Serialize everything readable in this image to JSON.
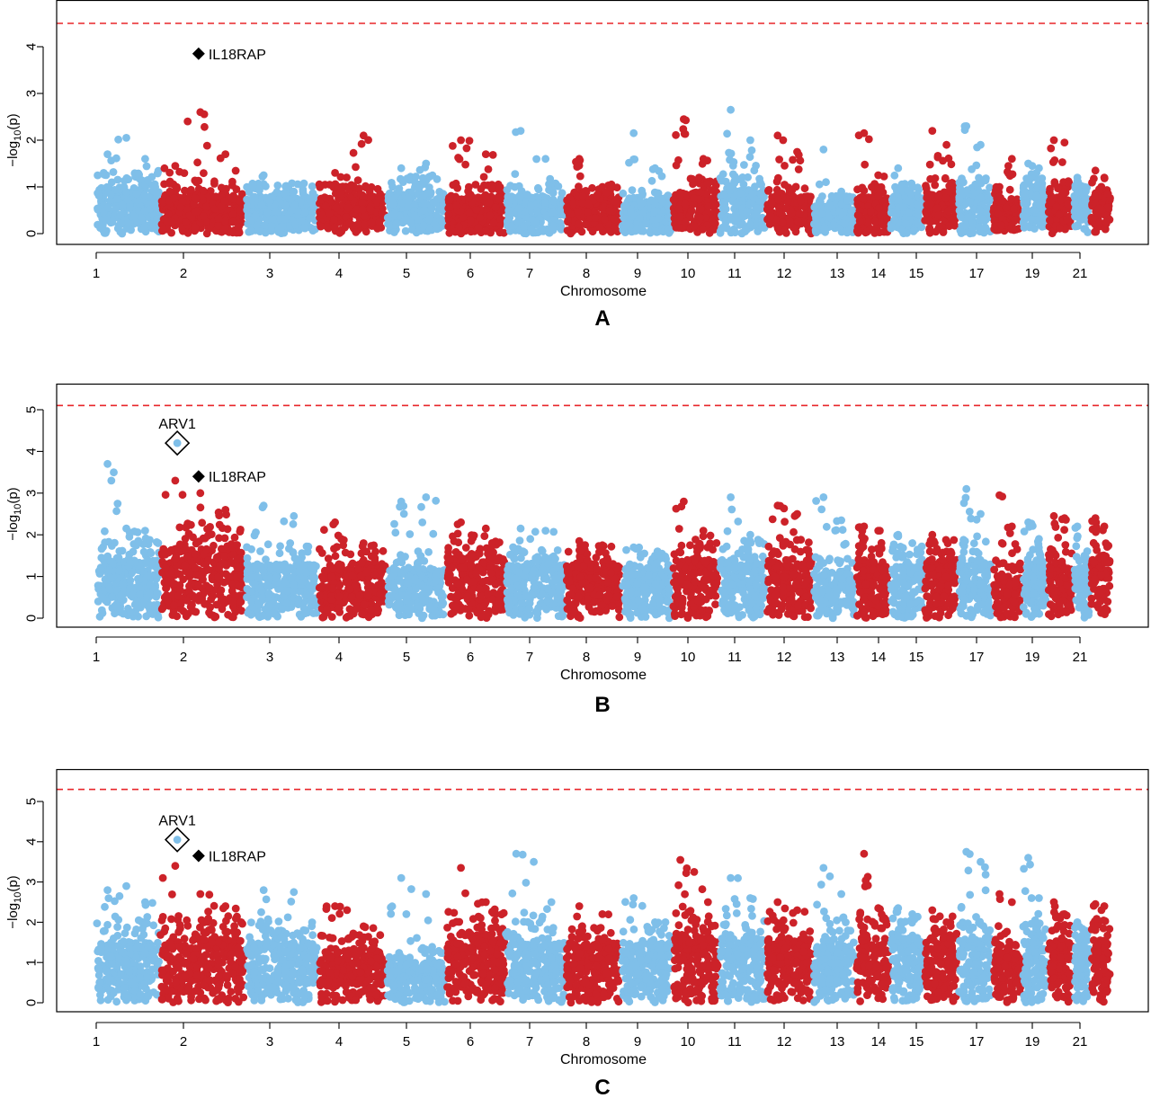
{
  "colors": {
    "blue": "#7fbfe9",
    "red": "#cc2229",
    "threshold": "#e8262a",
    "marker": "#000000"
  },
  "chart_data": [
    {
      "type": "scatter",
      "subtype": "manhattan",
      "panel_label": "A",
      "xlabel": "Chromosome",
      "ylabel": "−log10(p)",
      "ylabel_parts": [
        "−log",
        "10",
        "(p)"
      ],
      "ylim": [
        0,
        5
      ],
      "yticks": [
        0,
        1,
        2,
        3,
        4
      ],
      "threshold": 4.5,
      "x_tick_labels": [
        "1",
        "2",
        "3",
        "4",
        "5",
        "6",
        "7",
        "8",
        "9",
        "10",
        "11",
        "12",
        "13",
        "14",
        "15",
        "17",
        "19",
        "21"
      ],
      "chromosomes": [
        {
          "chr": 1,
          "start": 1,
          "end": 2.5,
          "color": "blue",
          "mass_max": 1.0,
          "peaks": [
            1.7,
            2.05,
            1.6
          ]
        },
        {
          "chr": 2,
          "start": 2.5,
          "end": 4.5,
          "color": "red",
          "mass_max": 0.85,
          "peaks": [
            1.45,
            2.6,
            1.7
          ]
        },
        {
          "chr": 3,
          "start": 4.5,
          "end": 6.2,
          "color": "blue",
          "mass_max": 0.8,
          "peaks": [
            1.25,
            0.9
          ]
        },
        {
          "chr": 4,
          "start": 6.2,
          "end": 7.8,
          "color": "red",
          "mass_max": 0.8,
          "peaks": [
            1.3,
            2.1
          ]
        },
        {
          "chr": 5,
          "start": 7.8,
          "end": 9.2,
          "color": "blue",
          "mass_max": 0.9,
          "peaks": [
            1.4,
            1.5
          ]
        },
        {
          "chr": 6,
          "start": 9.2,
          "end": 10.6,
          "color": "red",
          "mass_max": 0.8,
          "peaks": [
            2.0,
            1.7
          ]
        },
        {
          "chr": 7,
          "start": 10.6,
          "end": 12.0,
          "color": "blue",
          "mass_max": 0.8,
          "peaks": [
            2.2,
            1.6
          ]
        },
        {
          "chr": 8,
          "start": 12.0,
          "end": 13.3,
          "color": "red",
          "mass_max": 0.8,
          "peaks": [
            1.6,
            1.0
          ]
        },
        {
          "chr": 9,
          "start": 13.3,
          "end": 14.5,
          "color": "blue",
          "mass_max": 0.7,
          "peaks": [
            2.15,
            1.4
          ]
        },
        {
          "chr": 10,
          "start": 14.5,
          "end": 15.6,
          "color": "red",
          "mass_max": 0.9,
          "peaks": [
            2.45,
            1.6
          ]
        },
        {
          "chr": 11,
          "start": 15.6,
          "end": 16.7,
          "color": "blue",
          "mass_max": 0.95,
          "peaks": [
            2.65,
            2.0
          ]
        },
        {
          "chr": 12,
          "start": 16.7,
          "end": 17.8,
          "color": "red",
          "mass_max": 0.8,
          "peaks": [
            2.1,
            1.75
          ]
        },
        {
          "chr": 13,
          "start": 17.8,
          "end": 18.8,
          "color": "blue",
          "mass_max": 0.6,
          "peaks": [
            1.8,
            0.9
          ]
        },
        {
          "chr": 14,
          "start": 18.8,
          "end": 19.6,
          "color": "red",
          "mass_max": 0.8,
          "peaks": [
            2.15,
            1.25
          ]
        },
        {
          "chr": 15,
          "start": 19.6,
          "end": 20.4,
          "color": "blue",
          "mass_max": 0.8,
          "peaks": [
            1.4,
            1.0
          ]
        },
        {
          "chr": 16,
          "start": 20.4,
          "end": 21.2,
          "color": "red",
          "mass_max": 0.9,
          "peaks": [
            2.2,
            1.9
          ]
        },
        {
          "chr": 17,
          "start": 21.2,
          "end": 22.0,
          "color": "blue",
          "mass_max": 0.9,
          "peaks": [
            2.3,
            1.9
          ]
        },
        {
          "chr": 18,
          "start": 22.0,
          "end": 22.7,
          "color": "red",
          "mass_max": 0.6,
          "peaks": [
            1.0,
            1.6
          ]
        },
        {
          "chr": 19,
          "start": 22.7,
          "end": 23.3,
          "color": "blue",
          "mass_max": 0.9,
          "peaks": [
            1.5,
            1.4
          ]
        },
        {
          "chr": 20,
          "start": 23.3,
          "end": 23.9,
          "color": "red",
          "mass_max": 0.8,
          "peaks": [
            2.0,
            1.95
          ]
        },
        {
          "chr": 21,
          "start": 23.9,
          "end": 24.3,
          "color": "blue",
          "mass_max": 0.8,
          "peaks": [
            1.2,
            1.0
          ]
        },
        {
          "chr": 22,
          "start": 24.3,
          "end": 24.8,
          "color": "red",
          "mass_max": 0.8,
          "peaks": [
            1.35,
            1.2
          ]
        }
      ],
      "annotations": [
        {
          "label": "IL18RAP",
          "x": 3.4,
          "y": 3.85,
          "marker": "filled-diamond"
        }
      ]
    },
    {
      "type": "scatter",
      "subtype": "manhattan",
      "panel_label": "B",
      "xlabel": "Chromosome",
      "ylabel": "−log10(p)",
      "ylabel_parts": [
        "−log",
        "10",
        "(p)"
      ],
      "ylim": [
        0,
        5.5
      ],
      "yticks": [
        0,
        1,
        2,
        3,
        4,
        5
      ],
      "threshold": 5.1,
      "x_tick_labels": [
        "1",
        "2",
        "3",
        "4",
        "5",
        "6",
        "7",
        "8",
        "9",
        "10",
        "11",
        "12",
        "13",
        "14",
        "15",
        "17",
        "19",
        "21"
      ],
      "chromosomes": [
        {
          "chr": 1,
          "start": 1,
          "end": 2.5,
          "color": "blue",
          "mass_max": 1.4,
          "peaks": [
            3.7,
            2.15,
            2.1
          ]
        },
        {
          "chr": 2,
          "start": 2.5,
          "end": 4.5,
          "color": "red",
          "mass_max": 1.7,
          "peaks": [
            3.3,
            3.0,
            2.6
          ]
        },
        {
          "chr": 3,
          "start": 4.5,
          "end": 6.2,
          "color": "blue",
          "mass_max": 1.3,
          "peaks": [
            2.7,
            2.45
          ]
        },
        {
          "chr": 4,
          "start": 6.2,
          "end": 7.8,
          "color": "red",
          "mass_max": 1.3,
          "peaks": [
            2.3,
            1.8
          ]
        },
        {
          "chr": 5,
          "start": 7.8,
          "end": 9.2,
          "color": "blue",
          "mass_max": 1.2,
          "peaks": [
            2.8,
            2.9
          ]
        },
        {
          "chr": 6,
          "start": 9.2,
          "end": 10.6,
          "color": "red",
          "mass_max": 1.5,
          "peaks": [
            2.3,
            2.15
          ]
        },
        {
          "chr": 7,
          "start": 10.6,
          "end": 12.0,
          "color": "blue",
          "mass_max": 1.3,
          "peaks": [
            2.15,
            2.1
          ]
        },
        {
          "chr": 8,
          "start": 12.0,
          "end": 13.3,
          "color": "red",
          "mass_max": 1.3,
          "peaks": [
            1.85,
            1.75
          ]
        },
        {
          "chr": 9,
          "start": 13.3,
          "end": 14.5,
          "color": "blue",
          "mass_max": 1.2,
          "peaks": [
            1.7,
            1.5
          ]
        },
        {
          "chr": 10,
          "start": 14.5,
          "end": 15.6,
          "color": "red",
          "mass_max": 1.4,
          "peaks": [
            2.8,
            2.1
          ]
        },
        {
          "chr": 11,
          "start": 15.6,
          "end": 16.7,
          "color": "blue",
          "mass_max": 1.4,
          "peaks": [
            2.9,
            2.0
          ]
        },
        {
          "chr": 12,
          "start": 16.7,
          "end": 17.8,
          "color": "red",
          "mass_max": 1.4,
          "peaks": [
            2.7,
            2.5
          ]
        },
        {
          "chr": 13,
          "start": 17.8,
          "end": 18.8,
          "color": "blue",
          "mass_max": 1.1,
          "peaks": [
            2.9,
            2.35
          ]
        },
        {
          "chr": 14,
          "start": 18.8,
          "end": 19.6,
          "color": "red",
          "mass_max": 1.3,
          "peaks": [
            2.2,
            2.1
          ]
        },
        {
          "chr": 15,
          "start": 19.6,
          "end": 20.4,
          "color": "blue",
          "mass_max": 1.3,
          "peaks": [
            2.0,
            1.8
          ]
        },
        {
          "chr": 16,
          "start": 20.4,
          "end": 21.2,
          "color": "red",
          "mass_max": 1.4,
          "peaks": [
            2.0,
            1.6
          ]
        },
        {
          "chr": 17,
          "start": 21.2,
          "end": 22.0,
          "color": "blue",
          "mass_max": 1.4,
          "peaks": [
            3.1,
            2.5
          ]
        },
        {
          "chr": 18,
          "start": 22.0,
          "end": 22.7,
          "color": "red",
          "mass_max": 1.0,
          "peaks": [
            2.95,
            2.2
          ]
        },
        {
          "chr": 19,
          "start": 22.7,
          "end": 23.3,
          "color": "blue",
          "mass_max": 1.3,
          "peaks": [
            2.3,
            1.9
          ]
        },
        {
          "chr": 20,
          "start": 23.3,
          "end": 23.9,
          "color": "red",
          "mass_max": 1.3,
          "peaks": [
            2.45,
            2.4
          ]
        },
        {
          "chr": 21,
          "start": 23.9,
          "end": 24.3,
          "color": "blue",
          "mass_max": 1.2,
          "peaks": [
            2.2,
            1.5
          ]
        },
        {
          "chr": 22,
          "start": 24.3,
          "end": 24.8,
          "color": "red",
          "mass_max": 1.4,
          "peaks": [
            2.4,
            2.2
          ]
        }
      ],
      "annotations": [
        {
          "label": "ARV1",
          "x": 2.9,
          "y": 4.2,
          "marker": "open-diamond"
        },
        {
          "label": "IL18RAP",
          "x": 3.4,
          "y": 3.4,
          "marker": "filled-diamond"
        }
      ]
    },
    {
      "type": "scatter",
      "subtype": "manhattan",
      "panel_label": "C",
      "xlabel": "Chromosome",
      "ylabel": "−log10(p)",
      "ylabel_parts": [
        "−log",
        "10",
        "(p)"
      ],
      "ylim": [
        0,
        5.5
      ],
      "yticks": [
        0,
        1,
        2,
        3,
        4,
        5
      ],
      "threshold": 5.3,
      "x_tick_labels": [
        "1",
        "2",
        "3",
        "4",
        "5",
        "6",
        "7",
        "8",
        "9",
        "10",
        "11",
        "12",
        "13",
        "14",
        "15",
        "17",
        "19",
        "21"
      ],
      "chromosomes": [
        {
          "chr": 1,
          "start": 1,
          "end": 2.5,
          "color": "blue",
          "mass_max": 1.5,
          "peaks": [
            2.8,
            2.9,
            2.5
          ]
        },
        {
          "chr": 2,
          "start": 2.5,
          "end": 4.5,
          "color": "red",
          "mass_max": 1.6,
          "peaks": [
            3.4,
            2.7,
            2.4
          ]
        },
        {
          "chr": 3,
          "start": 4.5,
          "end": 6.2,
          "color": "blue",
          "mass_max": 1.5,
          "peaks": [
            2.8,
            2.75
          ]
        },
        {
          "chr": 4,
          "start": 6.2,
          "end": 7.8,
          "color": "red",
          "mass_max": 1.3,
          "peaks": [
            2.4,
            1.9
          ]
        },
        {
          "chr": 5,
          "start": 7.8,
          "end": 9.2,
          "color": "blue",
          "mass_max": 1.0,
          "peaks": [
            3.1,
            2.7
          ]
        },
        {
          "chr": 6,
          "start": 9.2,
          "end": 10.6,
          "color": "red",
          "mass_max": 1.7,
          "peaks": [
            3.35,
            2.5
          ]
        },
        {
          "chr": 7,
          "start": 10.6,
          "end": 12.0,
          "color": "blue",
          "mass_max": 1.5,
          "peaks": [
            3.7,
            3.5,
            2.5
          ]
        },
        {
          "chr": 8,
          "start": 12.0,
          "end": 13.3,
          "color": "red",
          "mass_max": 1.5,
          "peaks": [
            2.4,
            2.2
          ]
        },
        {
          "chr": 9,
          "start": 13.3,
          "end": 14.5,
          "color": "blue",
          "mass_max": 1.5,
          "peaks": [
            2.6,
            2.0
          ]
        },
        {
          "chr": 10,
          "start": 14.5,
          "end": 15.6,
          "color": "red",
          "mass_max": 1.7,
          "peaks": [
            3.55,
            3.25,
            2.5
          ]
        },
        {
          "chr": 11,
          "start": 15.6,
          "end": 16.7,
          "color": "blue",
          "mass_max": 1.6,
          "peaks": [
            3.1,
            2.6
          ]
        },
        {
          "chr": 12,
          "start": 16.7,
          "end": 17.8,
          "color": "red",
          "mass_max": 1.6,
          "peaks": [
            2.5,
            2.3
          ]
        },
        {
          "chr": 13,
          "start": 17.8,
          "end": 18.8,
          "color": "blue",
          "mass_max": 1.4,
          "peaks": [
            3.35,
            2.7
          ]
        },
        {
          "chr": 14,
          "start": 18.8,
          "end": 19.6,
          "color": "red",
          "mass_max": 1.6,
          "peaks": [
            3.7,
            2.35
          ]
        },
        {
          "chr": 15,
          "start": 19.6,
          "end": 20.4,
          "color": "blue",
          "mass_max": 1.6,
          "peaks": [
            2.35,
            2.2
          ]
        },
        {
          "chr": 16,
          "start": 20.4,
          "end": 21.2,
          "color": "red",
          "mass_max": 1.6,
          "peaks": [
            2.3,
            2.0
          ]
        },
        {
          "chr": 17,
          "start": 21.2,
          "end": 22.0,
          "color": "blue",
          "mass_max": 1.6,
          "peaks": [
            3.75,
            3.5
          ]
        },
        {
          "chr": 18,
          "start": 22.0,
          "end": 22.7,
          "color": "red",
          "mass_max": 1.2,
          "peaks": [
            2.7,
            2.5
          ]
        },
        {
          "chr": 19,
          "start": 22.7,
          "end": 23.3,
          "color": "blue",
          "mass_max": 1.5,
          "peaks": [
            3.6,
            2.6
          ]
        },
        {
          "chr": 20,
          "start": 23.3,
          "end": 23.9,
          "color": "red",
          "mass_max": 1.5,
          "peaks": [
            2.5,
            2.2
          ]
        },
        {
          "chr": 21,
          "start": 23.9,
          "end": 24.3,
          "color": "blue",
          "mass_max": 1.5,
          "peaks": [
            2.0,
            1.8
          ]
        },
        {
          "chr": 22,
          "start": 24.3,
          "end": 24.8,
          "color": "red",
          "mass_max": 1.6,
          "peaks": [
            2.45,
            2.4
          ]
        }
      ],
      "annotations": [
        {
          "label": "ARV1",
          "x": 2.9,
          "y": 4.05,
          "marker": "open-diamond"
        },
        {
          "label": "IL18RAP",
          "x": 3.4,
          "y": 3.65,
          "marker": "filled-diamond"
        }
      ]
    }
  ]
}
